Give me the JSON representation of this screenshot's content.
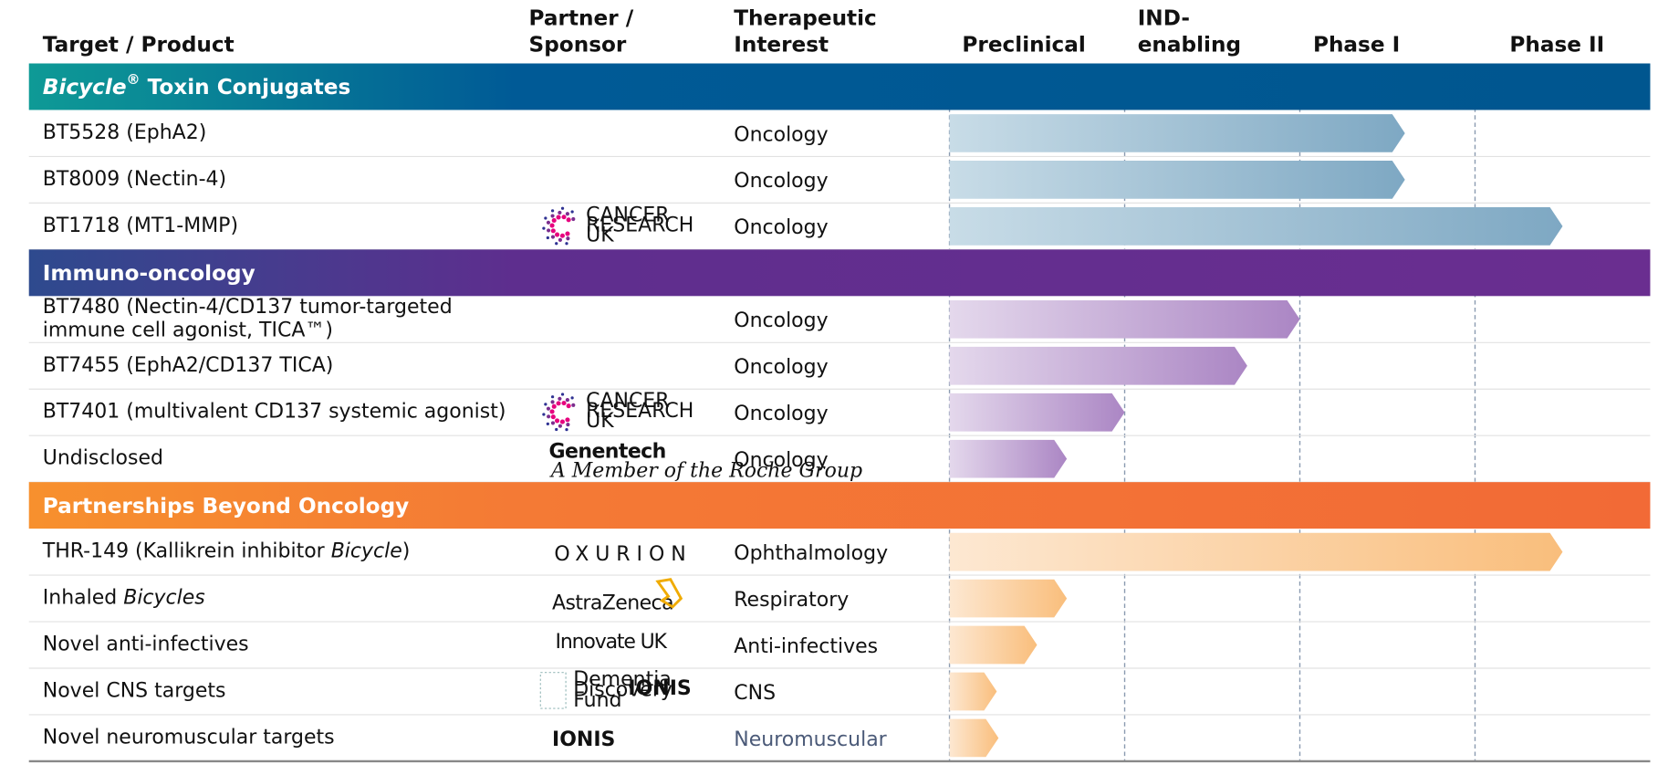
{
  "header": {
    "columns": [
      {
        "lines": [
          "Target / Product"
        ]
      },
      {
        "lines": [
          "Partner /",
          "Sponsor"
        ]
      },
      {
        "lines": [
          "Therapeutic",
          "Interest"
        ]
      },
      {
        "lines": [
          "Preclinical"
        ]
      },
      {
        "lines": [
          "IND-",
          "enabling"
        ]
      },
      {
        "lines": [
          "Phase I"
        ]
      },
      {
        "lines": [
          "Phase II"
        ]
      }
    ]
  },
  "sections": [
    {
      "title": [
        {
          "text": "Bicycle",
          "italic": true
        },
        {
          "text": "®",
          "sup": true
        },
        {
          "text": " Toxin Conjugates"
        }
      ],
      "colors": [
        "#0e9a96",
        "#005a96",
        "#00568f"
      ],
      "bar_colors": [
        "#c8dce7",
        "#7ea8c3"
      ],
      "rows": [
        {
          "product": [
            [
              {
                "text": "BT5528 (EphA2)"
              }
            ]
          ],
          "partner": null,
          "interest": "Oncology",
          "progress": 2.6
        },
        {
          "product": [
            [
              {
                "text": "BT8009 (Nectin-4)"
              }
            ]
          ],
          "partner": null,
          "interest": "Oncology",
          "progress": 2.6
        },
        {
          "product": [
            [
              {
                "text": "BT1718 (MT1-MMP)"
              }
            ]
          ],
          "partner": {
            "logo": "cruk",
            "texts": [
              "CANCER",
              "RESEARCH",
              "UK"
            ]
          },
          "interest": "Oncology",
          "progress": 3.5
        }
      ]
    },
    {
      "title": [
        {
          "text": "Immuno-oncology"
        }
      ],
      "colors": [
        "#2e4a8e",
        "#5e2e8e",
        "#6a2e90"
      ],
      "bar_colors": [
        "#e4d8ec",
        "#ab86c4"
      ],
      "rows": [
        {
          "product": [
            [
              {
                "text": "BT7480 (Nectin-4/CD137 tumor-targeted"
              }
            ],
            [
              {
                "text": "immune cell agonist, TICA™)"
              }
            ]
          ],
          "partner": null,
          "interest": "Oncology",
          "progress": 2.0
        },
        {
          "product": [
            [
              {
                "text": "BT7455 (EphA2/CD137 TICA)"
              }
            ]
          ],
          "partner": null,
          "interest": "Oncology",
          "progress": 1.7
        },
        {
          "product": [
            [
              {
                "text": "BT7401 (multivalent CD137 systemic agonist)"
              }
            ]
          ],
          "partner": {
            "logo": "cruk",
            "texts": [
              "CANCER",
              "RESEARCH",
              "UK"
            ]
          },
          "interest": "Oncology",
          "progress": 1.0
        },
        {
          "product": [
            [
              {
                "text": "Undisclosed"
              }
            ]
          ],
          "partner": {
            "logo": "genentech",
            "texts": [
              "Genentech",
              "A Member of the Roche Group"
            ]
          },
          "interest": "Oncology",
          "progress": 0.67
        }
      ]
    },
    {
      "title": [
        {
          "text": "Partnerships Beyond Oncology"
        }
      ],
      "colors": [
        "#f7902e",
        "#f47a35",
        "#f26a36"
      ],
      "bar_colors": [
        "#fde8d2",
        "#f9be7c"
      ],
      "rows": [
        {
          "product": [
            [
              {
                "text": "THR-149 (Kallikrein inhibitor "
              },
              {
                "text": "Bicycle",
                "italic": true
              },
              {
                "text": ")"
              }
            ]
          ],
          "partner": {
            "logo": "oxurion",
            "texts": [
              "OXURION"
            ]
          },
          "interest": "Ophthalmology",
          "progress": 3.5
        },
        {
          "product": [
            [
              {
                "text": "Inhaled "
              },
              {
                "text": "Bicycles",
                "italic": true
              }
            ]
          ],
          "partner": {
            "logo": "astrazeneca",
            "texts": [
              "AstraZeneca"
            ]
          },
          "interest": "Respiratory",
          "progress": 0.67
        },
        {
          "product": [
            [
              {
                "text": "Novel anti-infectives"
              }
            ]
          ],
          "partner": {
            "logo": "innovate",
            "texts": [
              "Innovate UK"
            ]
          },
          "interest": "Anti-infectives",
          "progress": 0.5
        },
        {
          "product": [
            [
              {
                "text": "Novel CNS targets"
              }
            ]
          ],
          "partner": {
            "logo": "ddf",
            "texts": [
              "Dementia",
              "Discovery",
              "Fund",
              "IONIS"
            ]
          },
          "interest": "CNS",
          "progress": 0.27
        },
        {
          "product": [
            [
              {
                "text": "Novel neuromuscular targets"
              }
            ]
          ],
          "partner": {
            "logo": "ionis",
            "texts": [
              "IONIS"
            ]
          },
          "interest": "Neuromuscular",
          "interest_color": "#4b5a78",
          "progress": 0.28
        }
      ]
    }
  ]
}
